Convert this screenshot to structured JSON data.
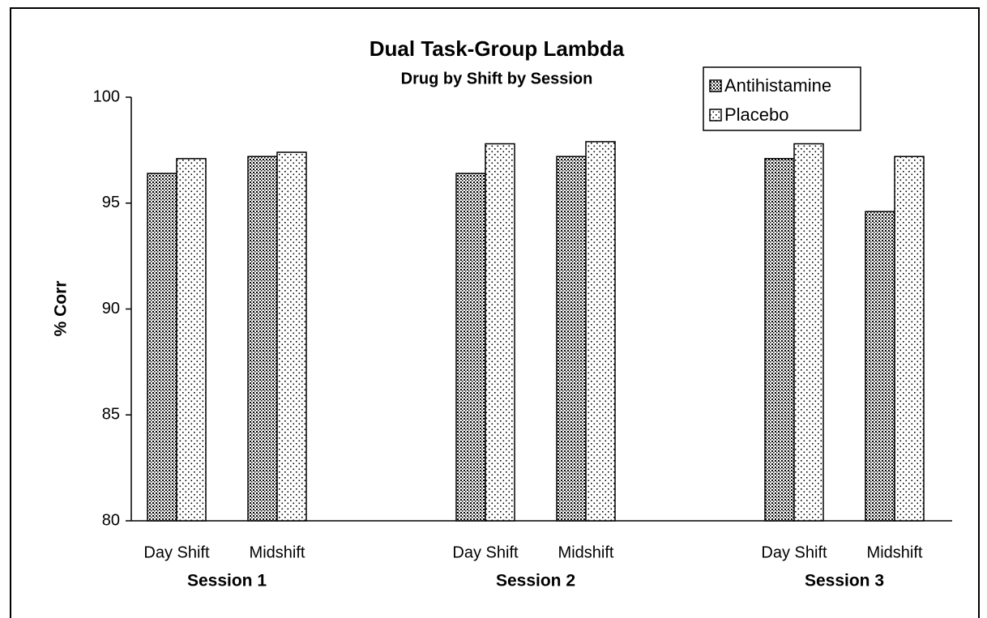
{
  "chart_data": {
    "type": "bar",
    "title": "Dual Task-Group Lambda",
    "subtitle": "Drug by Shift by Session",
    "y_label": "% Corr",
    "categories": [
      "Day Shift",
      "Midshift",
      "Day Shift",
      "Midshift",
      "Day Shift",
      "Midshift"
    ],
    "groups": [
      "Session 1",
      "Session 2",
      "Session 3"
    ],
    "series": [
      {
        "name": "Antihistamine",
        "color": "#000000",
        "values": [
          96.4,
          97.2,
          96.4,
          97.2,
          97.1,
          94.6
        ]
      },
      {
        "name": "Placebo",
        "color": "#000000",
        "values": [
          97.1,
          97.4,
          97.8,
          97.9,
          97.8,
          97.2
        ]
      }
    ],
    "ylim": [
      80,
      100
    ],
    "yticks": [
      80,
      85,
      90,
      95,
      100
    ],
    "grid": false,
    "legend": "upper right"
  }
}
